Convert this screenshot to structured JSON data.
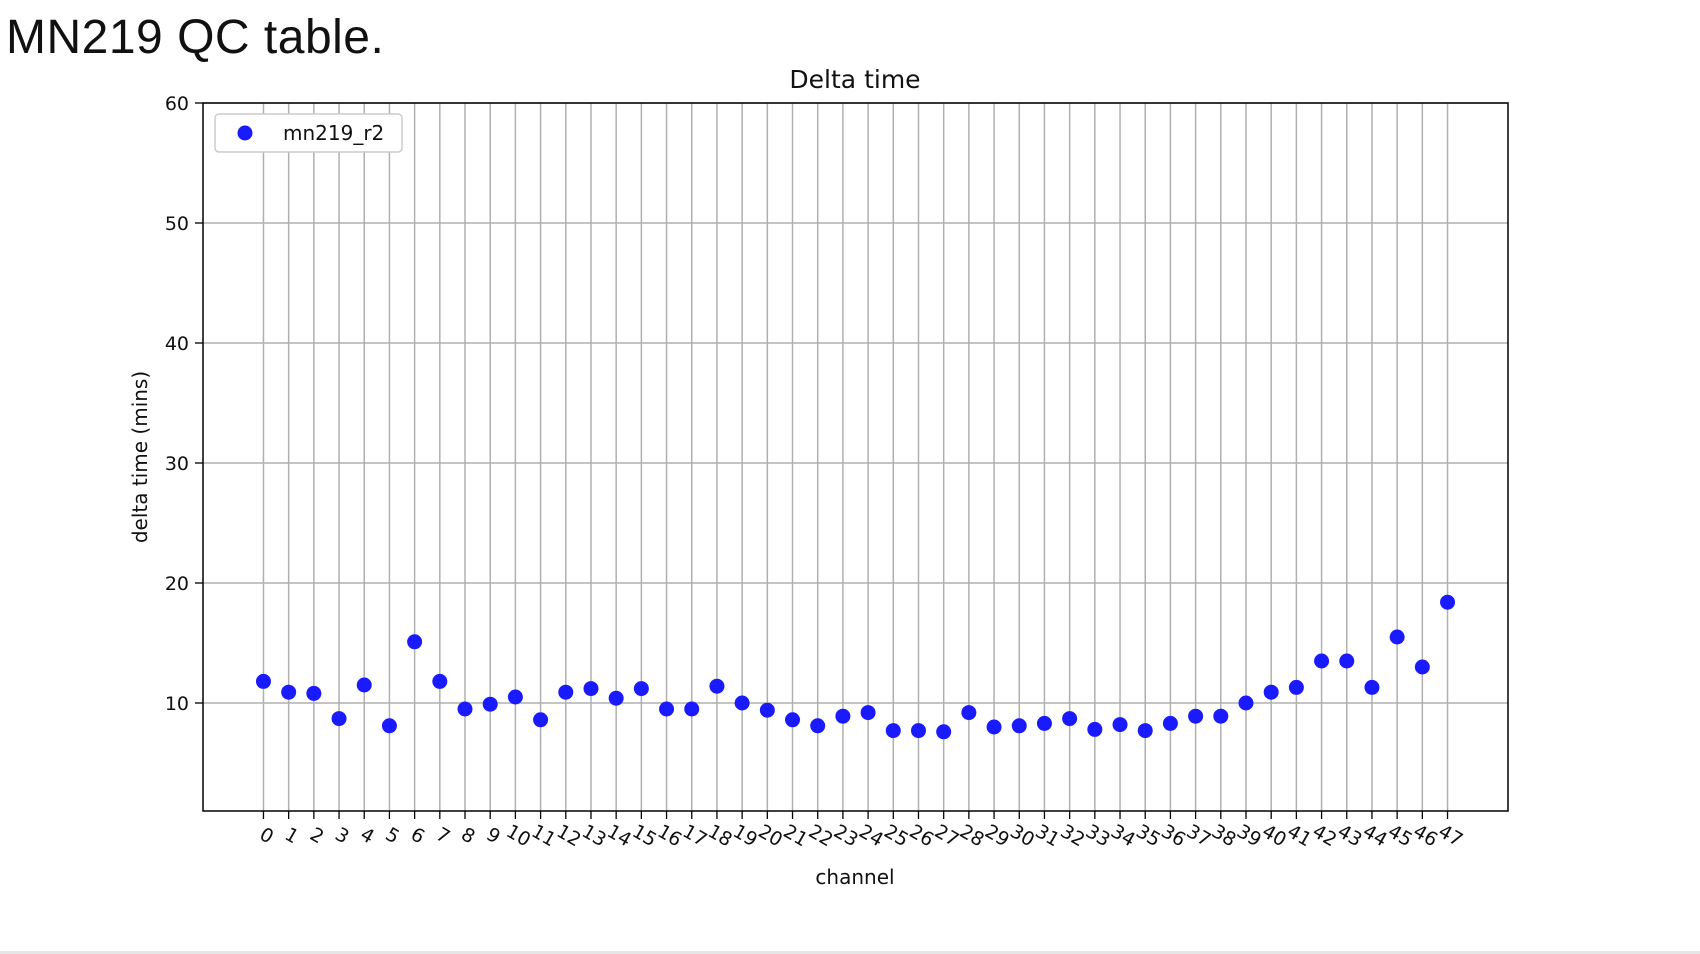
{
  "slide": {
    "title": "MN219 QC table."
  },
  "chart_data": {
    "type": "scatter",
    "title": "Delta time",
    "xlabel": "channel",
    "ylabel": "delta time (mins)",
    "ylim": [
      1,
      60
    ],
    "yticks": [
      10,
      20,
      30,
      40,
      50,
      60
    ],
    "xlim": [
      -2.4,
      49.4
    ],
    "x": [
      0,
      1,
      2,
      3,
      4,
      5,
      6,
      7,
      8,
      9,
      10,
      11,
      12,
      13,
      14,
      15,
      16,
      17,
      18,
      19,
      20,
      21,
      22,
      23,
      24,
      25,
      26,
      27,
      28,
      29,
      30,
      31,
      32,
      33,
      34,
      35,
      36,
      37,
      38,
      39,
      40,
      41,
      42,
      43,
      44,
      45,
      46,
      47
    ],
    "xtick_labels": [
      "0",
      "1",
      "2",
      "3",
      "4",
      "5",
      "6",
      "7",
      "8",
      "9",
      "10",
      "11",
      "12",
      "13",
      "14",
      "15",
      "16",
      "17",
      "18",
      "19",
      "20",
      "21",
      "22",
      "23",
      "24",
      "25",
      "26",
      "27",
      "28",
      "29",
      "30",
      "31",
      "32",
      "33",
      "34",
      "35",
      "36",
      "37",
      "38",
      "39",
      "40",
      "41",
      "42",
      "43",
      "44",
      "45",
      "46",
      "47"
    ],
    "grid": true,
    "legend_position": "upper-left",
    "series": [
      {
        "name": "mn219_r2",
        "color": "#1a1aff",
        "values": [
          11.8,
          10.9,
          10.8,
          8.7,
          11.5,
          8.1,
          15.1,
          11.8,
          9.5,
          9.9,
          10.5,
          8.6,
          10.9,
          11.2,
          10.4,
          11.2,
          9.5,
          9.5,
          11.4,
          10.0,
          9.4,
          8.6,
          8.1,
          8.9,
          9.2,
          7.7,
          7.7,
          7.6,
          9.2,
          8.0,
          8.1,
          8.3,
          8.7,
          7.8,
          8.2,
          7.7,
          8.3,
          8.9,
          8.9,
          10.0,
          10.9,
          11.3,
          13.5,
          13.5,
          11.3,
          15.5,
          13.0,
          18.4
        ]
      }
    ]
  }
}
